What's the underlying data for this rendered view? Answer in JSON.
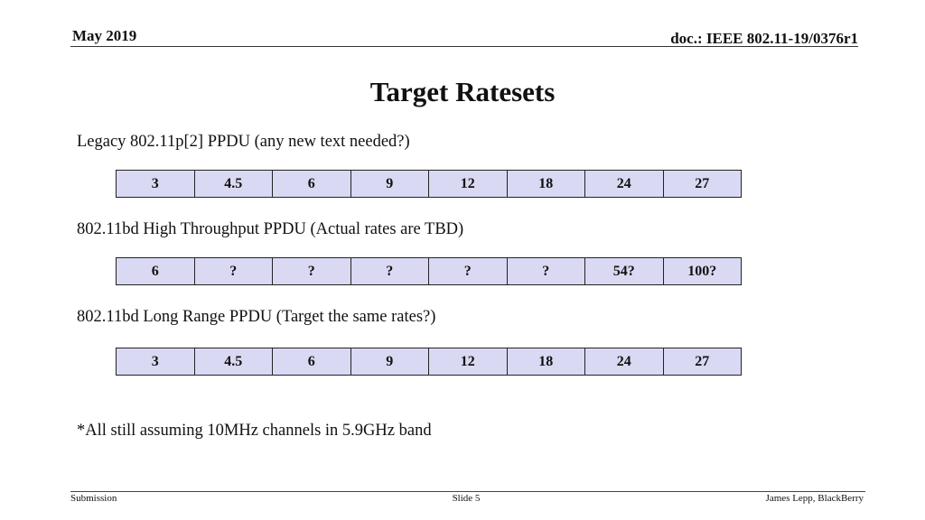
{
  "header": {
    "date": "May 2019",
    "doc_id": "doc.: IEEE 802.11-19/0376r1"
  },
  "title": "Target Ratesets",
  "sections": [
    {
      "heading": "Legacy 802.11p[2] PPDU (any new text needed?)",
      "rates": [
        "3",
        "4.5",
        "6",
        "9",
        "12",
        "18",
        "24",
        "27"
      ]
    },
    {
      "heading": "802.11bd High Throughput PPDU (Actual rates are TBD)",
      "rates": [
        "6",
        "?",
        "?",
        "?",
        "?",
        "?",
        "54?",
        "100?"
      ]
    },
    {
      "heading": "802.11bd Long Range PPDU (Target the same rates?)",
      "rates": [
        "3",
        "4.5",
        "6",
        "9",
        "12",
        "18",
        "24",
        "27"
      ]
    }
  ],
  "note": "*All still assuming 10MHz channels in 5.9GHz band",
  "footer": {
    "left": "Submission",
    "center": "Slide 5",
    "right": "James Lepp, BlackBerry"
  },
  "colors": {
    "table_cell_fill": "#d9d9f3",
    "border": "#222222"
  }
}
